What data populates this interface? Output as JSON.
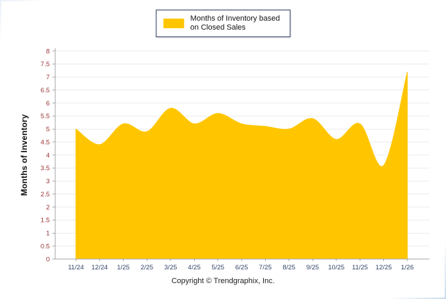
{
  "page": {
    "copyright": "Copyright © Trendgraphix, Inc."
  },
  "legend": {
    "line1": "Months of Inventory based",
    "line2": "on Closed Sales"
  },
  "chart_data": {
    "type": "area",
    "title": "",
    "xlabel": "",
    "ylabel": "Months of Inventory",
    "categories": [
      "11/24",
      "12/24",
      "1/25",
      "2/25",
      "3/25",
      "4/25",
      "5/25",
      "6/25",
      "7/25",
      "8/25",
      "9/25",
      "10/25",
      "11/25",
      "12/25",
      "1/26"
    ],
    "series": [
      {
        "name": "Months of Inventory based on Closed Sales",
        "values": [
          5.0,
          4.4,
          5.2,
          4.9,
          5.8,
          5.2,
          5.6,
          5.2,
          5.1,
          5.0,
          5.4,
          4.6,
          5.2,
          3.6,
          7.2
        ]
      }
    ],
    "ylim": [
      0,
      8
    ],
    "y_tick_step": 0.5,
    "grid": true,
    "legend_position": "top",
    "colors": {
      "area_fill": "#ffc600",
      "y_tick_label": "#993333",
      "x_tick_label": "#334466",
      "axis_line": "#a6a6a6",
      "gridline": "#ebebeb"
    }
  }
}
